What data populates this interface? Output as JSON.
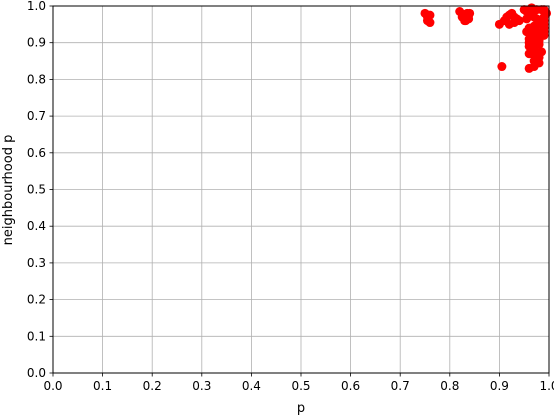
{
  "chart_data": {
    "type": "scatter",
    "xlabel": "p",
    "ylabel": "neighbourhood p",
    "xlim": [
      0.0,
      1.0
    ],
    "ylim": [
      0.0,
      1.0
    ],
    "x_ticks": [
      "0.0",
      "0.1",
      "0.2",
      "0.3",
      "0.4",
      "0.5",
      "0.6",
      "0.7",
      "0.8",
      "0.9",
      "1.0"
    ],
    "y_ticks": [
      "0.0",
      "0.1",
      "0.2",
      "0.3",
      "0.4",
      "0.5",
      "0.6",
      "0.7",
      "0.8",
      "0.9",
      "1.0"
    ],
    "grid": true,
    "marker_color": "#ff0000",
    "series": [
      {
        "x": [
          0.75,
          0.755,
          0.76,
          0.755,
          0.76,
          0.82,
          0.825,
          0.83,
          0.835,
          0.838,
          0.84,
          0.838,
          0.832,
          0.9,
          0.91,
          0.915,
          0.92,
          0.925,
          0.93,
          0.935,
          0.94,
          0.93,
          0.92,
          0.95,
          0.955,
          0.96,
          0.965,
          0.97,
          0.975,
          0.98,
          0.985,
          0.99,
          0.995,
          0.96,
          0.97,
          0.98,
          0.99,
          0.955,
          0.965,
          0.975,
          0.985,
          0.96,
          0.97,
          0.98,
          0.99,
          0.96,
          0.97,
          0.98,
          0.99,
          0.965,
          0.975,
          0.985,
          0.97,
          0.98,
          0.96,
          0.97,
          0.98,
          0.99,
          0.975,
          0.965,
          0.955,
          0.985,
          0.99,
          0.97,
          0.96,
          0.97,
          0.975,
          0.98,
          0.96,
          0.99,
          0.905
        ],
        "y": [
          0.98,
          0.97,
          0.975,
          0.96,
          0.955,
          0.985,
          0.97,
          0.96,
          0.98,
          0.975,
          0.98,
          0.965,
          0.96,
          0.95,
          0.96,
          0.97,
          0.975,
          0.98,
          0.97,
          0.965,
          0.96,
          0.955,
          0.95,
          0.99,
          0.985,
          0.98,
          0.975,
          0.97,
          0.965,
          0.96,
          0.955,
          0.95,
          0.98,
          0.94,
          0.945,
          0.95,
          0.94,
          0.93,
          0.92,
          0.915,
          0.925,
          0.91,
          0.9,
          0.905,
          0.92,
          0.89,
          0.88,
          0.895,
          0.93,
          0.87,
          0.86,
          0.875,
          0.85,
          0.845,
          0.83,
          0.835,
          0.86,
          0.97,
          0.99,
          0.995,
          0.965,
          0.99,
          0.96,
          0.94,
          0.9,
          0.92,
          0.93,
          0.91,
          0.87,
          0.99,
          0.835
        ]
      }
    ]
  }
}
